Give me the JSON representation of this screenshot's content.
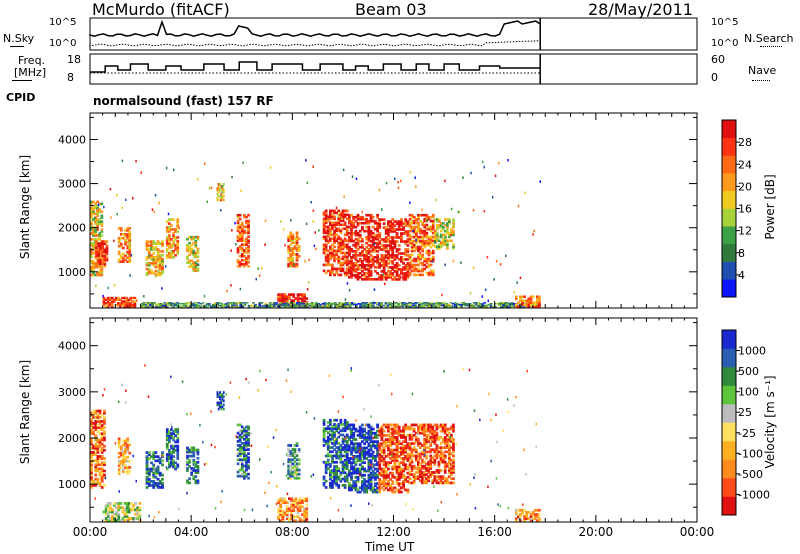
{
  "header": {
    "station": "McMurdo (fitACF)",
    "beam": "Beam 03",
    "date": "28/May/2011"
  },
  "top_panels": {
    "nsky_label": "N.Sky",
    "nsearch_label": "N.Search",
    "freq_label_line1": "Freq.",
    "freq_label_line2": "[MHz]",
    "nave_label": "Nave",
    "nsky_ticks": [
      "10^5",
      "10^0"
    ],
    "nsearch_ticks": [
      "10^5",
      "10^0"
    ],
    "freq_ticks": [
      "18",
      "8"
    ],
    "nave_ticks": [
      "60",
      "0"
    ],
    "cpid_label": "CPID",
    "cpid_value": "normalsound (fast) 157 RF"
  },
  "colors": {
    "power_scale": [
      "#0a14ff",
      "#1f4fb0",
      "#2f7a3c",
      "#3ea046",
      "#a8d23a",
      "#f0c81e",
      "#ff9a1e",
      "#ff6a14",
      "#ff3214",
      "#e01010"
    ],
    "velocity_scale": [
      "#e01010",
      "#ff4a1a",
      "#ff8a1e",
      "#ffb020",
      "#ffe060",
      "#bdbdbd",
      "#5cc43a",
      "#2f8a3c",
      "#2a5eb0",
      "#1a2ad0"
    ]
  },
  "chart_data": [
    {
      "type": "heatmap",
      "name": "power",
      "title": "",
      "xlabel": "",
      "ylabel": "Slant Range [km]",
      "xlim": [
        0,
        24
      ],
      "ylim": [
        180,
        4600
      ],
      "yticks": [
        "4000",
        "3000",
        "2000",
        "1000"
      ],
      "colorbar_label": "Power [dB]",
      "colorbar_ticks": [
        "28",
        "24",
        "20",
        "16",
        "12",
        "8",
        "4"
      ],
      "colorbar_range": [
        0,
        32
      ],
      "echo_regions": [
        {
          "t0": 0.0,
          "t1": 0.5,
          "r0": 900,
          "r1": 2600,
          "level": 0.55
        },
        {
          "t0": 0.2,
          "t1": 0.7,
          "r0": 1100,
          "r1": 1700,
          "level": 0.85
        },
        {
          "t0": 1.1,
          "t1": 1.6,
          "r0": 1200,
          "r1": 2000,
          "level": 0.7
        },
        {
          "t0": 2.2,
          "t1": 2.9,
          "r0": 900,
          "r1": 1700,
          "level": 0.6
        },
        {
          "t0": 3.0,
          "t1": 3.5,
          "r0": 1300,
          "r1": 2200,
          "level": 0.65
        },
        {
          "t0": 3.8,
          "t1": 4.3,
          "r0": 1000,
          "r1": 1800,
          "level": 0.5
        },
        {
          "t0": 5.0,
          "t1": 5.3,
          "r0": 2600,
          "r1": 3000,
          "level": 0.6
        },
        {
          "t0": 5.8,
          "t1": 6.3,
          "r0": 1100,
          "r1": 2300,
          "level": 0.8
        },
        {
          "t0": 7.8,
          "t1": 8.3,
          "r0": 1100,
          "r1": 1900,
          "level": 0.7
        },
        {
          "t0": 9.2,
          "t1": 10.2,
          "r0": 900,
          "r1": 2400,
          "level": 0.85
        },
        {
          "t0": 10.2,
          "t1": 11.4,
          "r0": 800,
          "r1": 2300,
          "level": 0.9
        },
        {
          "t0": 11.4,
          "t1": 12.6,
          "r0": 800,
          "r1": 2200,
          "level": 0.9
        },
        {
          "t0": 12.6,
          "t1": 13.6,
          "r0": 900,
          "r1": 2300,
          "level": 0.75
        },
        {
          "t0": 13.6,
          "t1": 14.4,
          "r0": 1500,
          "r1": 2200,
          "level": 0.5
        },
        {
          "t0": 7.4,
          "t1": 8.6,
          "r0": 180,
          "r1": 500,
          "level": 0.9
        },
        {
          "t0": 0.5,
          "t1": 1.8,
          "r0": 180,
          "r1": 420,
          "level": 0.8
        },
        {
          "t0": 2.0,
          "t1": 17.8,
          "r0": 180,
          "r1": 300,
          "level": 0.3
        },
        {
          "t0": 16.8,
          "t1": 17.8,
          "r0": 180,
          "r1": 450,
          "level": 0.75
        }
      ]
    },
    {
      "type": "heatmap",
      "name": "velocity",
      "title": "",
      "xlabel": "Time UT",
      "ylabel": "Slant Range [km]",
      "xlim": [
        0,
        24
      ],
      "ylim": [
        180,
        4600
      ],
      "xticks": [
        "00:00",
        "04:00",
        "08:00",
        "12:00",
        "16:00",
        "20:00",
        "00:00"
      ],
      "yticks": [
        "4000",
        "3000",
        "2000",
        "1000"
      ],
      "colorbar_label": "Velocity [m s⁻¹]",
      "colorbar_ticks": [
        "1000",
        "500",
        "100",
        "25",
        "-25",
        "-100",
        "-500",
        "-1000"
      ],
      "echo_regions": [
        {
          "t0": 0.0,
          "t1": 0.6,
          "r0": 900,
          "r1": 2600,
          "level": 0.2
        },
        {
          "t0": 1.1,
          "t1": 1.6,
          "r0": 1200,
          "r1": 2000,
          "level": 0.35
        },
        {
          "t0": 2.2,
          "t1": 2.9,
          "r0": 900,
          "r1": 1700,
          "level": 0.9
        },
        {
          "t0": 3.0,
          "t1": 3.5,
          "r0": 1300,
          "r1": 2200,
          "level": 0.85
        },
        {
          "t0": 3.8,
          "t1": 4.3,
          "r0": 1000,
          "r1": 1800,
          "level": 0.8
        },
        {
          "t0": 5.0,
          "t1": 5.3,
          "r0": 2600,
          "r1": 3000,
          "level": 0.9
        },
        {
          "t0": 5.8,
          "t1": 6.3,
          "r0": 1100,
          "r1": 2300,
          "level": 0.8
        },
        {
          "t0": 7.8,
          "t1": 8.3,
          "r0": 1100,
          "r1": 1900,
          "level": 0.7
        },
        {
          "t0": 9.2,
          "t1": 10.2,
          "r0": 900,
          "r1": 2400,
          "level": 0.85
        },
        {
          "t0": 10.2,
          "t1": 11.4,
          "r0": 800,
          "r1": 2300,
          "level": 0.9
        },
        {
          "t0": 11.4,
          "t1": 12.6,
          "r0": 800,
          "r1": 2300,
          "level": 0.15
        },
        {
          "t0": 12.6,
          "t1": 14.4,
          "r0": 1000,
          "r1": 2300,
          "level": 0.15
        },
        {
          "t0": 7.4,
          "t1": 8.6,
          "r0": 180,
          "r1": 700,
          "level": 0.3
        },
        {
          "t0": 0.5,
          "t1": 2.0,
          "r0": 180,
          "r1": 600,
          "level": 0.55
        },
        {
          "t0": 16.8,
          "t1": 17.8,
          "r0": 180,
          "r1": 450,
          "level": 0.3
        }
      ]
    }
  ]
}
